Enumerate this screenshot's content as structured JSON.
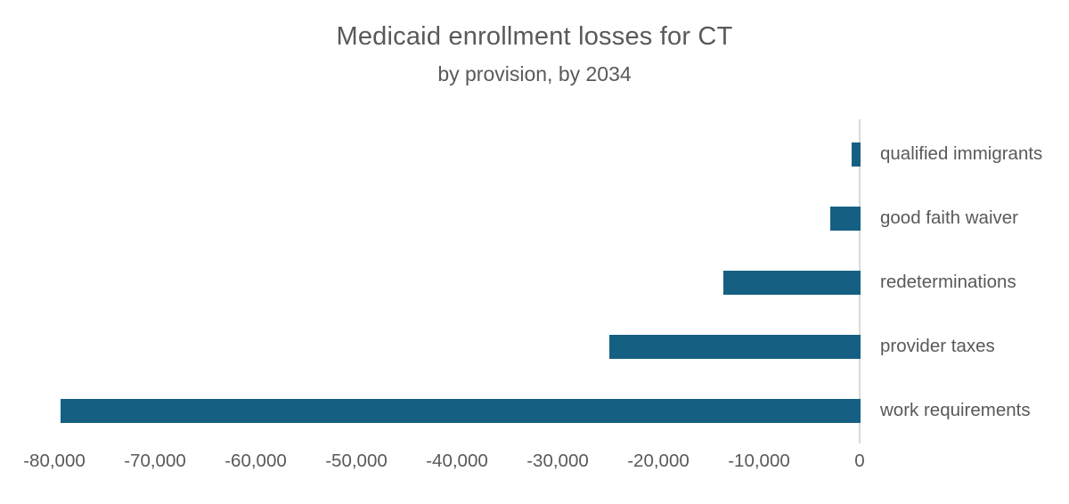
{
  "chart_data": {
    "type": "bar",
    "orientation": "horizontal",
    "title": "Medicaid enrollment losses for CT",
    "subtitle": "by provision, by 2034",
    "categories": [
      "qualified immigrants",
      "good faith waiver",
      "redeterminations",
      "provider taxes",
      "work requirements"
    ],
    "values": [
      -900,
      -3000,
      -13600,
      -25000,
      -79500
    ],
    "xlim": [
      -80000,
      0
    ],
    "x_tick_step": 10000,
    "x_tick_labels": [
      "-80,000",
      "-70,000",
      "-60,000",
      "-50,000",
      "-40,000",
      "-30,000",
      "-20,000",
      "-10,000",
      "0"
    ],
    "grid": false,
    "legend": "none",
    "bar_color": "#156082",
    "text_color": "#595959",
    "axis_line_color": "#d9d9d9",
    "background_color": "#ffffff"
  }
}
